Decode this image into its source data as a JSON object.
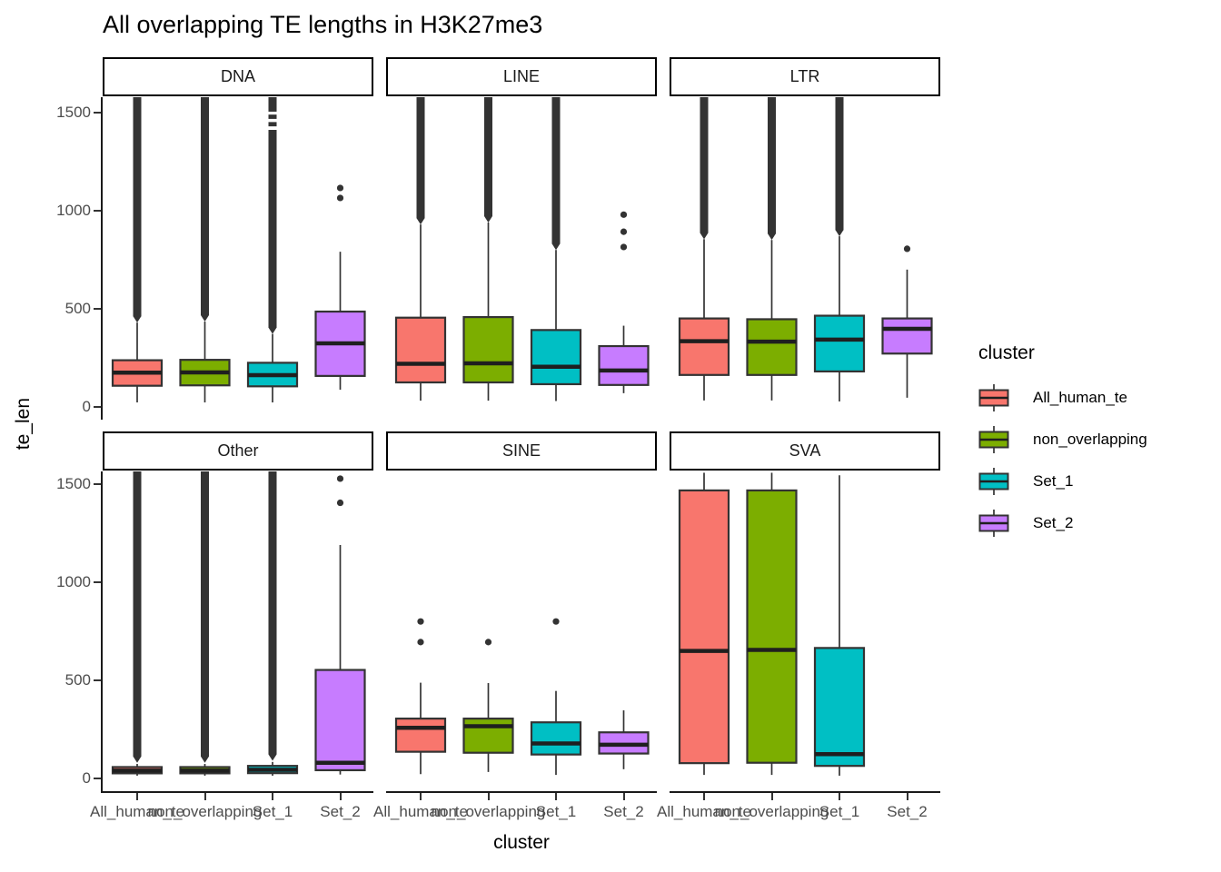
{
  "title": "All overlapping TE lengths in H3K27me3",
  "axes": {
    "x_title": "cluster",
    "y_title": "te_len",
    "y_ticks": [
      0,
      500,
      1000,
      1500
    ],
    "x_categories": [
      "All_human_te",
      "non_overlapping",
      "Set_1",
      "Set_2"
    ]
  },
  "legend": {
    "title": "cluster",
    "items": [
      {
        "label": "All_human_te",
        "color": "#F8766D"
      },
      {
        "label": "non_overlapping",
        "color": "#7CAE00"
      },
      {
        "label": "Set_1",
        "color": "#00BFC4"
      },
      {
        "label": "Set_2",
        "color": "#C77CFF"
      }
    ]
  },
  "style_colors": {
    "box_stroke": "#333333",
    "median": "#1F1F1F",
    "whisker": "#333333",
    "outlier": "#333333",
    "tick_label": "#4D4D4D",
    "axis_line": "#1A1A1A"
  },
  "chart_data": {
    "type": "boxplot-faceted",
    "title": "All overlapping TE lengths in H3K27me3",
    "xlabel": "cluster",
    "ylabel": "te_len",
    "ylim": [
      0,
      1600
    ],
    "y_ticks": [
      0,
      500,
      1000,
      1500
    ],
    "clusters": [
      "All_human_te",
      "non_overlapping",
      "Set_1",
      "Set_2"
    ],
    "facets": [
      {
        "name": "DNA",
        "boxes": [
          {
            "cluster": "All_human_te",
            "low": 23,
            "q1": 108,
            "med": 175,
            "q3": 238,
            "high": 430,
            "outlier_bar": [
              430,
              1600
            ]
          },
          {
            "cluster": "non_overlapping",
            "low": 23,
            "q1": 110,
            "med": 176,
            "q3": 240,
            "high": 435,
            "outlier_bar": [
              435,
              1600
            ]
          },
          {
            "cluster": "Set_1",
            "low": 23,
            "q1": 105,
            "med": 162,
            "q3": 225,
            "high": 372,
            "outlier_bar": [
              372,
              1600
            ],
            "bar_gaps": [
              [
                1412,
                1430
              ],
              [
                1452,
                1468
              ],
              [
                1490,
                1505
              ]
            ]
          },
          {
            "cluster": "Set_2",
            "low": 88,
            "q1": 158,
            "med": 324,
            "q3": 486,
            "high": 791,
            "outliers": [
              1065,
              1116
            ]
          }
        ]
      },
      {
        "name": "LINE",
        "boxes": [
          {
            "cluster": "All_human_te",
            "low": 32,
            "q1": 125,
            "med": 220,
            "q3": 455,
            "high": 930,
            "outlier_bar": [
              930,
              1600
            ]
          },
          {
            "cluster": "non_overlapping",
            "low": 32,
            "q1": 125,
            "med": 222,
            "q3": 458,
            "high": 940,
            "outlier_bar": [
              940,
              1600
            ]
          },
          {
            "cluster": "Set_1",
            "low": 30,
            "q1": 116,
            "med": 205,
            "q3": 392,
            "high": 800,
            "outlier_bar": [
              800,
              1600
            ]
          },
          {
            "cluster": "Set_2",
            "low": 70,
            "q1": 112,
            "med": 186,
            "q3": 310,
            "high": 414,
            "outliers": [
              815,
              893,
              980
            ]
          }
        ]
      },
      {
        "name": "LTR",
        "boxes": [
          {
            "cluster": "All_human_te",
            "low": 33,
            "q1": 163,
            "med": 335,
            "q3": 451,
            "high": 855,
            "outlier_bar": [
              855,
              1600
            ]
          },
          {
            "cluster": "non_overlapping",
            "low": 33,
            "q1": 163,
            "med": 333,
            "q3": 447,
            "high": 851,
            "outlier_bar": [
              851,
              1600
            ]
          },
          {
            "cluster": "Set_1",
            "low": 28,
            "q1": 181,
            "med": 343,
            "q3": 465,
            "high": 870,
            "outlier_bar": [
              870,
              1600
            ]
          },
          {
            "cluster": "Set_2",
            "low": 47,
            "q1": 272,
            "med": 398,
            "q3": 451,
            "high": 700,
            "outliers": [
              806
            ]
          }
        ]
      },
      {
        "name": "Other",
        "boxes": [
          {
            "cluster": "All_human_te",
            "low": 14,
            "q1": 26,
            "med": 40,
            "q3": 58,
            "high": 74,
            "outlier_bar": [
              80,
              1600
            ]
          },
          {
            "cluster": "non_overlapping",
            "low": 14,
            "q1": 26,
            "med": 40,
            "q3": 58,
            "high": 74,
            "outlier_bar": [
              80,
              1600
            ]
          },
          {
            "cluster": "Set_1",
            "low": 14,
            "q1": 27,
            "med": 44,
            "q3": 64,
            "high": 84,
            "outlier_bar": [
              90,
              1600
            ]
          },
          {
            "cluster": "Set_2",
            "low": 20,
            "q1": 42,
            "med": 80,
            "q3": 553,
            "high": 1190,
            "outliers": [
              1405,
              1528
            ]
          }
        ]
      },
      {
        "name": "SINE",
        "boxes": [
          {
            "cluster": "All_human_te",
            "low": 22,
            "q1": 136,
            "med": 258,
            "q3": 305,
            "high": 488,
            "outliers": [
              695,
              800
            ]
          },
          {
            "cluster": "non_overlapping",
            "low": 33,
            "q1": 131,
            "med": 266,
            "q3": 305,
            "high": 486,
            "outliers": [
              695
            ]
          },
          {
            "cluster": "Set_1",
            "low": 18,
            "q1": 122,
            "med": 178,
            "q3": 286,
            "high": 446,
            "outliers": [
              800
            ]
          },
          {
            "cluster": "Set_2",
            "low": 47,
            "q1": 127,
            "med": 172,
            "q3": 235,
            "high": 347
          }
        ]
      },
      {
        "name": "SVA",
        "boxes": [
          {
            "cluster": "All_human_te",
            "low": 18,
            "q1": 78,
            "med": 650,
            "q3": 1468,
            "high": 1558
          },
          {
            "cluster": "non_overlapping",
            "low": 18,
            "q1": 80,
            "med": 655,
            "q3": 1468,
            "high": 1558
          },
          {
            "cluster": "Set_1",
            "low": 14,
            "q1": 64,
            "med": 124,
            "q3": 665,
            "high": 1545
          },
          null
        ]
      }
    ]
  }
}
